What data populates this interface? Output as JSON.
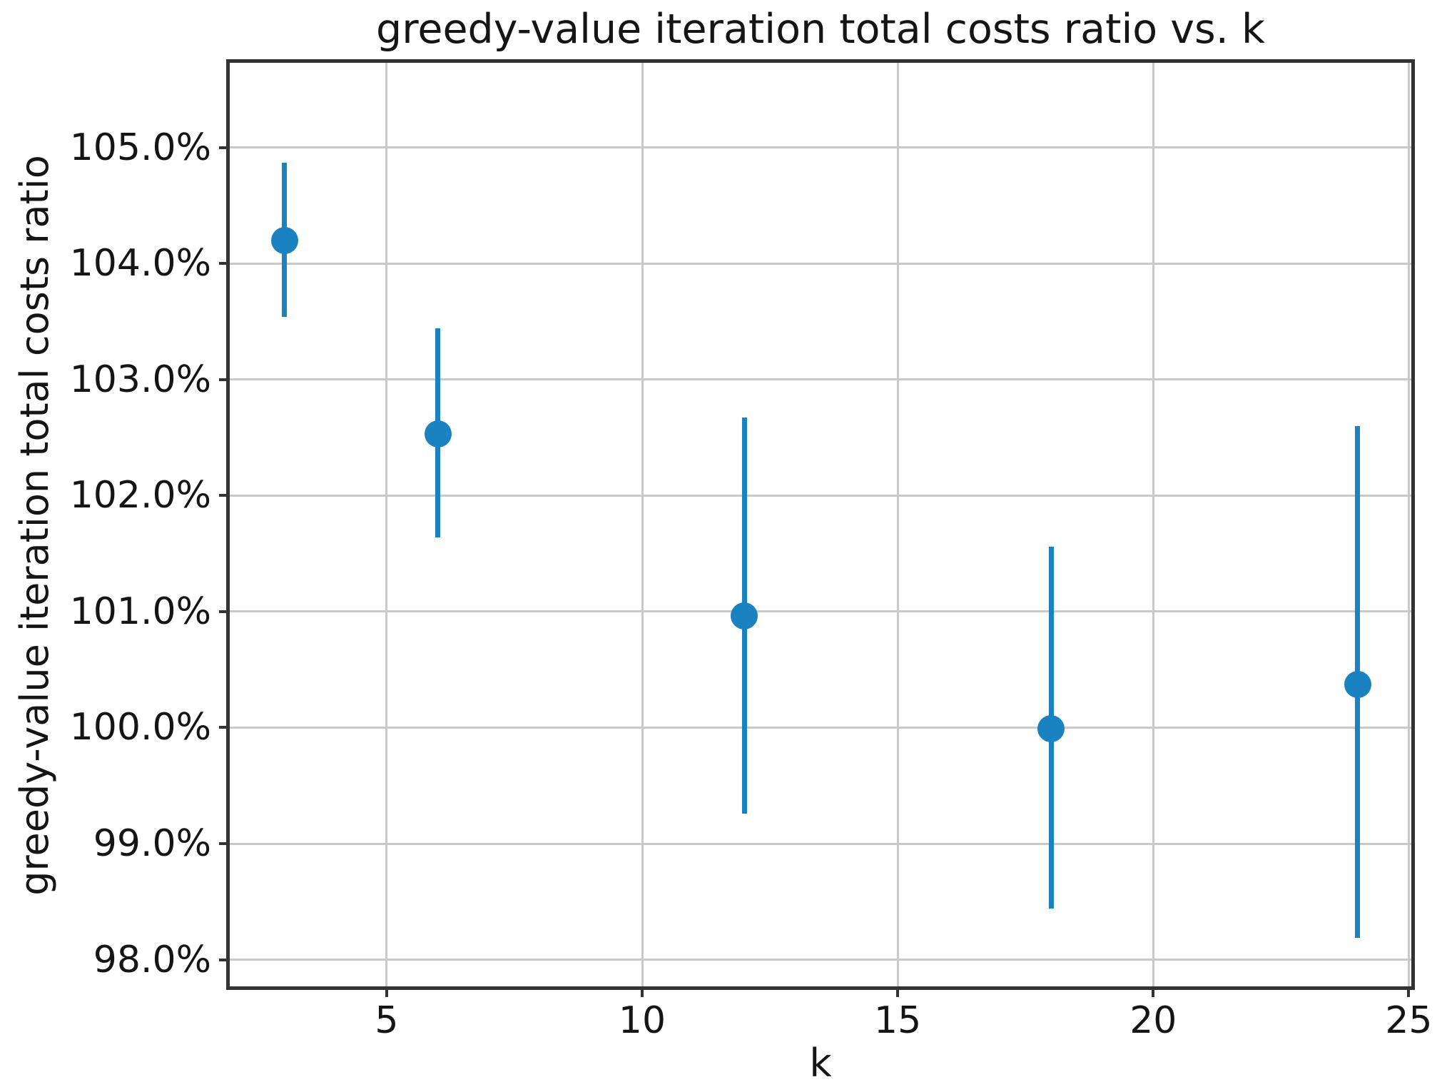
{
  "figure": {
    "title": "greedy-value iteration total costs ratio vs. k",
    "xlabel": "k",
    "ylabel": "greedy-value iteration total costs ratio"
  },
  "chart_data": {
    "type": "scatter",
    "title": "greedy-value iteration total costs ratio vs. k",
    "xlabel": "k",
    "ylabel": "greedy-value iteration total costs ratio",
    "x": [
      3,
      6,
      12,
      18,
      24
    ],
    "y": [
      104.2,
      102.53,
      100.96,
      99.99,
      100.37
    ],
    "y_err_upper": [
      104.87,
      103.44,
      102.67,
      101.56,
      102.6
    ],
    "y_err_lower": [
      103.54,
      101.64,
      99.26,
      98.44,
      98.19
    ],
    "y_unit": "%",
    "xticks": [
      5,
      10,
      15,
      20,
      25
    ],
    "xtick_labels": [
      "5",
      "10",
      "15",
      "20",
      "25"
    ],
    "yticks": [
      98,
      99,
      100,
      101,
      102,
      103,
      104,
      105
    ],
    "ytick_labels": [
      "98.0%",
      "99.0%",
      "100.0%",
      "101.0%",
      "102.0%",
      "103.0%",
      "104.0%",
      "105.0%"
    ],
    "xlim": [
      1.93,
      25.05
    ],
    "ylim": [
      97.77,
      105.73
    ],
    "grid": true,
    "legend": "none",
    "colors": {
      "marker": "#1b82c2",
      "errorbar": "#1b82c2",
      "grid": "#c9c9c9",
      "spine": "#333333",
      "text": "#151515",
      "background": "#ffffff"
    }
  }
}
